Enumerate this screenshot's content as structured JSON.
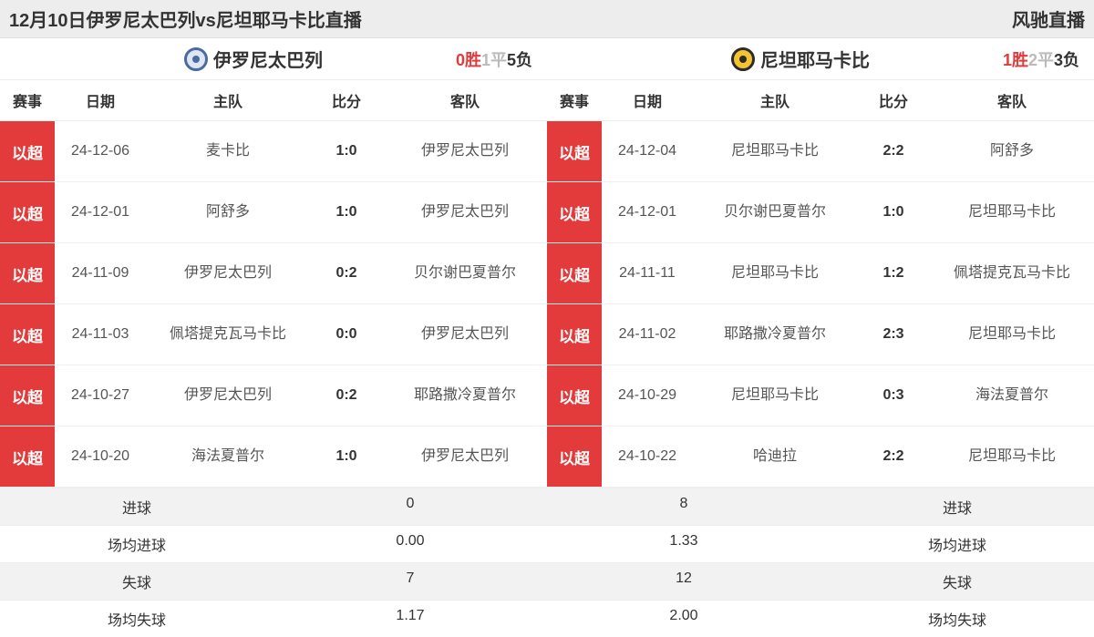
{
  "title_bar": {
    "left": "12月10日伊罗尼太巴列vs尼坦耶马卡比直播",
    "right": "风驰直播"
  },
  "colors": {
    "badge_red": "#e33b3b",
    "header_bg": "#ededed",
    "gray_text": "#bbbbbb",
    "logo_left_bg": "#dde6f2",
    "logo_left_ring": "#4a6aa0",
    "logo_right_bg": "#f4c430",
    "logo_right_ring": "#2b2b2b"
  },
  "columns": {
    "comp": "赛事",
    "date": "日期",
    "home": "主队",
    "score": "比分",
    "away": "客队"
  },
  "left": {
    "team_name": "伊罗尼太巴列",
    "record": {
      "win": "0胜",
      "draw": "1平",
      "lose": "5负"
    },
    "matches": [
      {
        "comp": "以超",
        "date": "24-12-06",
        "home": "麦卡比",
        "score": "1:0",
        "away": "伊罗尼太巴列"
      },
      {
        "comp": "以超",
        "date": "24-12-01",
        "home": "阿舒多",
        "score": "1:0",
        "away": "伊罗尼太巴列"
      },
      {
        "comp": "以超",
        "date": "24-11-09",
        "home": "伊罗尼太巴列",
        "score": "0:2",
        "away": "贝尔谢巴夏普尔"
      },
      {
        "comp": "以超",
        "date": "24-11-03",
        "home": "佩塔提克瓦马卡比",
        "score": "0:0",
        "away": "伊罗尼太巴列"
      },
      {
        "comp": "以超",
        "date": "24-10-27",
        "home": "伊罗尼太巴列",
        "score": "0:2",
        "away": "耶路撒冷夏普尔"
      },
      {
        "comp": "以超",
        "date": "24-10-20",
        "home": "海法夏普尔",
        "score": "1:0",
        "away": "伊罗尼太巴列"
      }
    ]
  },
  "right": {
    "team_name": "尼坦耶马卡比",
    "record": {
      "win": "1胜",
      "draw": "2平",
      "lose": "3负"
    },
    "matches": [
      {
        "comp": "以超",
        "date": "24-12-04",
        "home": "尼坦耶马卡比",
        "score": "2:2",
        "away": "阿舒多"
      },
      {
        "comp": "以超",
        "date": "24-12-01",
        "home": "贝尔谢巴夏普尔",
        "score": "1:0",
        "away": "尼坦耶马卡比"
      },
      {
        "comp": "以超",
        "date": "24-11-11",
        "home": "尼坦耶马卡比",
        "score": "1:2",
        "away": "佩塔提克瓦马卡比"
      },
      {
        "comp": "以超",
        "date": "24-11-02",
        "home": "耶路撒冷夏普尔",
        "score": "2:3",
        "away": "尼坦耶马卡比"
      },
      {
        "comp": "以超",
        "date": "24-10-29",
        "home": "尼坦耶马卡比",
        "score": "0:3",
        "away": "海法夏普尔"
      },
      {
        "comp": "以超",
        "date": "24-10-22",
        "home": "哈迪拉",
        "score": "2:2",
        "away": "尼坦耶马卡比"
      }
    ]
  },
  "summary": {
    "labels": {
      "goals": "进球",
      "avg_goals": "场均进球",
      "conceded": "失球",
      "avg_conceded": "场均失球"
    },
    "left": {
      "goals": "0",
      "avg_goals": "0.00",
      "conceded": "7",
      "avg_conceded": "1.17"
    },
    "right": {
      "goals": "8",
      "avg_goals": "1.33",
      "conceded": "12",
      "avg_conceded": "2.00"
    }
  }
}
